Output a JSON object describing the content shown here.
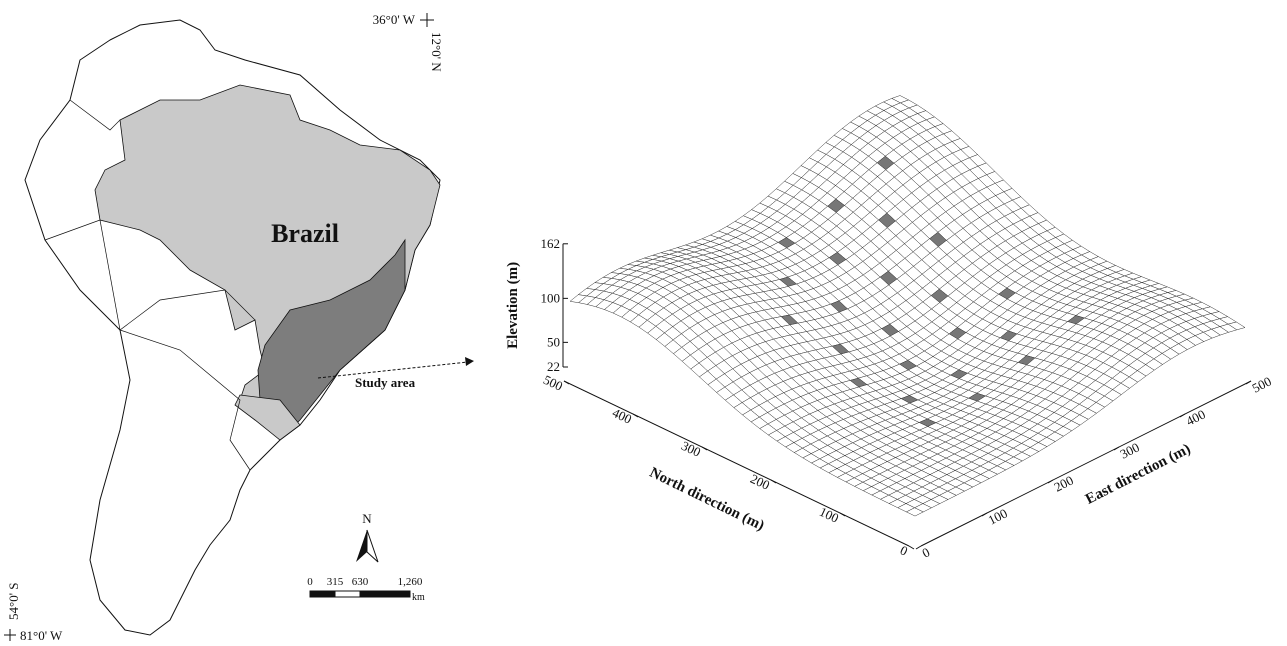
{
  "map": {
    "top_right_lon": "36°0' W",
    "top_right_lat": "12°0' N",
    "bottom_left_lat": "54°0' S",
    "bottom_left_lon": "81°0' W",
    "country_label": "Brazil",
    "study_area_label": "Study area",
    "north_label": "N",
    "scale_ticks": [
      0,
      315,
      630,
      {
        "value": 1260,
        "label": "1,260"
      }
    ],
    "scale_unit": "km"
  },
  "chart_data": {
    "type": "surface3d",
    "zlabel": "Elevation (m)",
    "zlim": [
      22,
      162
    ],
    "zticks": [
      22,
      50,
      100,
      162
    ],
    "xlabel": "North direction (m)",
    "xlim": [
      0,
      500
    ],
    "xticks": [
      0,
      100,
      200,
      300,
      400,
      500
    ],
    "ylabel": "East direction (m)",
    "ylim": [
      0,
      500
    ],
    "yticks": [
      0,
      100,
      200,
      300,
      400,
      500
    ]
  }
}
